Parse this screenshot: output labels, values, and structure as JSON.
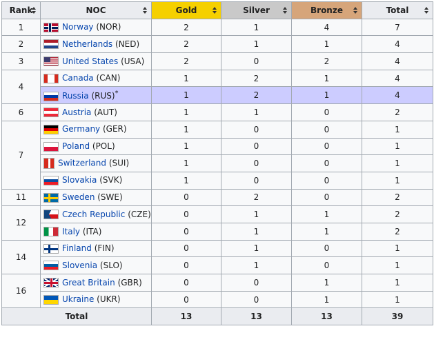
{
  "headers": {
    "rank": "Rank",
    "noc": "NOC",
    "gold": "Gold",
    "silver": "Silver",
    "bronze": "Bronze",
    "total": "Total"
  },
  "rows": [
    {
      "rank": "1",
      "country": "Norway",
      "code": "(NOR)",
      "gold": "2",
      "silver": "1",
      "bronze": "4",
      "total": "7",
      "flag": "norway-flag-icon"
    },
    {
      "rank": "2",
      "country": "Netherlands",
      "code": "(NED)",
      "gold": "2",
      "silver": "1",
      "bronze": "1",
      "total": "4",
      "flag": "netherlands-flag-icon"
    },
    {
      "rank": "3",
      "country": "United States",
      "code": "(USA)",
      "gold": "2",
      "silver": "0",
      "bronze": "2",
      "total": "4",
      "flag": "usa-flag-icon"
    },
    {
      "rank": "4",
      "country": "Canada",
      "code": "(CAN)",
      "gold": "1",
      "silver": "2",
      "bronze": "1",
      "total": "4",
      "flag": "canada-flag-icon"
    },
    {
      "rank": "",
      "country": "Russia",
      "code": "(RUS)",
      "note": "*",
      "gold": "1",
      "silver": "2",
      "bronze": "1",
      "total": "4",
      "flag": "russia-flag-icon"
    },
    {
      "rank": "6",
      "country": "Austria",
      "code": "(AUT)",
      "gold": "1",
      "silver": "1",
      "bronze": "0",
      "total": "2",
      "flag": "austria-flag-icon"
    },
    {
      "rank": "7",
      "country": "Germany",
      "code": "(GER)",
      "gold": "1",
      "silver": "0",
      "bronze": "0",
      "total": "1",
      "flag": "germany-flag-icon"
    },
    {
      "rank": "",
      "country": "Poland",
      "code": "(POL)",
      "gold": "1",
      "silver": "0",
      "bronze": "0",
      "total": "1",
      "flag": "poland-flag-icon"
    },
    {
      "rank": "",
      "country": "Switzerland",
      "code": "(SUI)",
      "gold": "1",
      "silver": "0",
      "bronze": "0",
      "total": "1",
      "flag": "switzerland-flag-icon"
    },
    {
      "rank": "",
      "country": "Slovakia",
      "code": "(SVK)",
      "gold": "1",
      "silver": "0",
      "bronze": "0",
      "total": "1",
      "flag": "slovakia-flag-icon"
    },
    {
      "rank": "11",
      "country": "Sweden",
      "code": "(SWE)",
      "gold": "0",
      "silver": "2",
      "bronze": "0",
      "total": "2",
      "flag": "sweden-flag-icon"
    },
    {
      "rank": "12",
      "country": "Czech Republic",
      "code": "(CZE)",
      "gold": "0",
      "silver": "1",
      "bronze": "1",
      "total": "2",
      "flag": "czech-flag-icon"
    },
    {
      "rank": "",
      "country": "Italy",
      "code": "(ITA)",
      "gold": "0",
      "silver": "1",
      "bronze": "1",
      "total": "2",
      "flag": "italy-flag-icon"
    },
    {
      "rank": "14",
      "country": "Finland",
      "code": "(FIN)",
      "gold": "0",
      "silver": "1",
      "bronze": "0",
      "total": "1",
      "flag": "finland-flag-icon"
    },
    {
      "rank": "",
      "country": "Slovenia",
      "code": "(SLO)",
      "gold": "0",
      "silver": "1",
      "bronze": "0",
      "total": "1",
      "flag": "slovenia-flag-icon"
    },
    {
      "rank": "16",
      "country": "Great Britain",
      "code": "(GBR)",
      "gold": "0",
      "silver": "0",
      "bronze": "1",
      "total": "1",
      "flag": "uk-flag-icon"
    },
    {
      "rank": "",
      "country": "Ukraine",
      "code": "(UKR)",
      "gold": "0",
      "silver": "0",
      "bronze": "1",
      "total": "1",
      "flag": "ukraine-flag-icon"
    }
  ],
  "totals": {
    "label": "Total",
    "gold": "13",
    "silver": "13",
    "bronze": "13",
    "total": "39"
  },
  "colors": {
    "gold": "#f5d000",
    "silver": "#c9c9c9",
    "bronze": "#d6a57a",
    "highlight": "#ccccff",
    "link": "#0645ad"
  }
}
